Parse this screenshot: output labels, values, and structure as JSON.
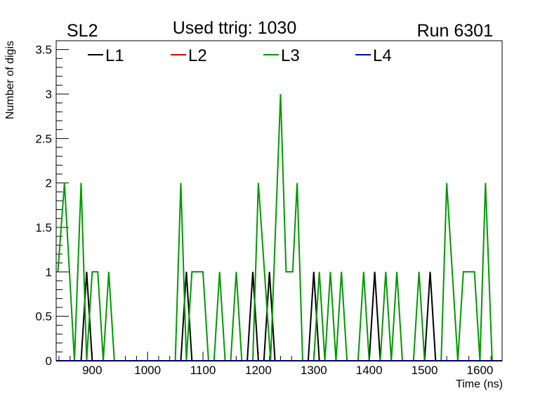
{
  "chart_data": {
    "type": "line",
    "title_left": "SL2",
    "title_center": "Used ttrig: 1030",
    "title_right": "Run 6301",
    "xlabel": "Time (ns)",
    "ylabel": "Number of digis",
    "xlim": [
      835,
      1640
    ],
    "ylim": [
      0,
      3.6
    ],
    "x_ticks": [
      900,
      1000,
      1100,
      1200,
      1300,
      1400,
      1500,
      1600
    ],
    "x_tick_labels": [
      "900",
      "1000",
      "1100",
      "1200",
      "1300",
      "1400",
      "1500",
      "1600"
    ],
    "y_ticks": [
      0,
      0.5,
      1,
      1.5,
      2,
      2.5,
      3,
      3.5
    ],
    "y_tick_labels": [
      "0",
      "0.5",
      "1",
      "1.5",
      "2",
      "2.5",
      "3",
      "3.5"
    ],
    "grid": false,
    "legend_position": "top",
    "series": [
      {
        "name": "L1",
        "color": "#000000",
        "points": [
          [
            835,
            0
          ],
          [
            880,
            0
          ],
          [
            890,
            1
          ],
          [
            900,
            0
          ],
          [
            1060,
            0
          ],
          [
            1070,
            1
          ],
          [
            1080,
            0
          ],
          [
            1180,
            0
          ],
          [
            1190,
            1
          ],
          [
            1200,
            0
          ],
          [
            1210,
            0
          ],
          [
            1220,
            1
          ],
          [
            1230,
            0
          ],
          [
            1290,
            0
          ],
          [
            1300,
            1
          ],
          [
            1310,
            0
          ],
          [
            1400,
            0
          ],
          [
            1410,
            1
          ],
          [
            1420,
            0
          ],
          [
            1500,
            0
          ],
          [
            1510,
            1
          ],
          [
            1520,
            0
          ],
          [
            1625,
            0
          ]
        ]
      },
      {
        "name": "L2",
        "color": "#dd0000",
        "points": [
          [
            835,
            0
          ],
          [
            1625,
            0
          ]
        ]
      },
      {
        "name": "L3",
        "color": "#009900",
        "points": [
          [
            838,
            1
          ],
          [
            850,
            2
          ],
          [
            868,
            0
          ],
          [
            880,
            2
          ],
          [
            890,
            0
          ],
          [
            900,
            1
          ],
          [
            910,
            1
          ],
          [
            920,
            0
          ],
          [
            930,
            1
          ],
          [
            940,
            0
          ],
          [
            1050,
            0
          ],
          [
            1060,
            2
          ],
          [
            1070,
            0
          ],
          [
            1080,
            1
          ],
          [
            1100,
            1
          ],
          [
            1110,
            0
          ],
          [
            1120,
            0
          ],
          [
            1130,
            1
          ],
          [
            1140,
            0
          ],
          [
            1150,
            0
          ],
          [
            1160,
            1
          ],
          [
            1170,
            0
          ],
          [
            1190,
            0
          ],
          [
            1200,
            2
          ],
          [
            1222,
            0
          ],
          [
            1240,
            3
          ],
          [
            1250,
            1
          ],
          [
            1262,
            1
          ],
          [
            1270,
            2
          ],
          [
            1280,
            0
          ],
          [
            1300,
            0
          ],
          [
            1310,
            1
          ],
          [
            1320,
            0
          ],
          [
            1330,
            1
          ],
          [
            1340,
            0
          ],
          [
            1350,
            1
          ],
          [
            1360,
            0
          ],
          [
            1380,
            0
          ],
          [
            1390,
            1
          ],
          [
            1400,
            0
          ],
          [
            1420,
            0
          ],
          [
            1430,
            1
          ],
          [
            1440,
            0
          ],
          [
            1450,
            1
          ],
          [
            1460,
            0
          ],
          [
            1480,
            0
          ],
          [
            1490,
            1
          ],
          [
            1500,
            0
          ],
          [
            1530,
            0
          ],
          [
            1540,
            2
          ],
          [
            1560,
            0
          ],
          [
            1570,
            1
          ],
          [
            1590,
            1
          ],
          [
            1600,
            0
          ],
          [
            1610,
            2
          ],
          [
            1622,
            0
          ]
        ]
      },
      {
        "name": "L4",
        "color": "#0000cc",
        "points": [
          [
            835,
            0
          ],
          [
            1640,
            0
          ]
        ]
      }
    ]
  }
}
